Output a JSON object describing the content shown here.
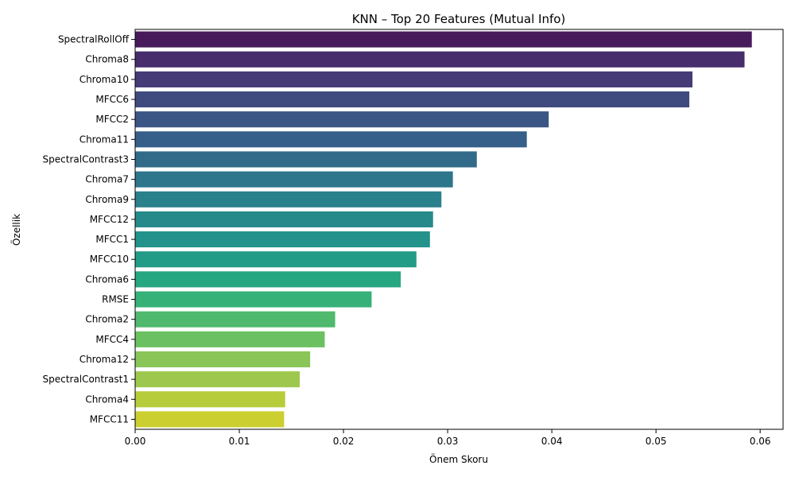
{
  "chart_data": {
    "type": "bar",
    "orientation": "horizontal",
    "title": "KNN – Top 20 Features (Mutual Info)",
    "xlabel": "Önem Skoru",
    "ylabel": "Özellik",
    "xlim": [
      0.0,
      0.0622
    ],
    "xticks": [
      0.0,
      0.01,
      0.02,
      0.03,
      0.04,
      0.05,
      0.06
    ],
    "xtick_labels": [
      "0.00",
      "0.01",
      "0.02",
      "0.03",
      "0.04",
      "0.05",
      "0.06"
    ],
    "grid": false,
    "categories": [
      "SpectralRollOff",
      "Chroma8",
      "Chroma10",
      "MFCC6",
      "MFCC2",
      "Chroma11",
      "SpectralContrast3",
      "Chroma7",
      "Chroma9",
      "MFCC12",
      "MFCC1",
      "MFCC10",
      "Chroma6",
      "RMSE",
      "Chroma2",
      "MFCC4",
      "Chroma12",
      "SpectralContrast1",
      "Chroma4",
      "MFCC11"
    ],
    "values": [
      0.0592,
      0.0585,
      0.0535,
      0.0532,
      0.0397,
      0.0376,
      0.0328,
      0.0305,
      0.0294,
      0.0286,
      0.0283,
      0.027,
      0.0255,
      0.0227,
      0.0192,
      0.0182,
      0.0168,
      0.0158,
      0.0144,
      0.0143
    ],
    "palette": "viridis",
    "colors": [
      "#471a5b",
      "#472d6b",
      "#443b77",
      "#3f4a7f",
      "#3b5585",
      "#365f89",
      "#326b89",
      "#2d768b",
      "#2a808b",
      "#268a8a",
      "#22928a",
      "#229c86",
      "#26a681",
      "#36b177",
      "#4fb96d",
      "#6bc161",
      "#89c657",
      "#9ec84d",
      "#b7cc3a",
      "#cbcf2f"
    ]
  }
}
